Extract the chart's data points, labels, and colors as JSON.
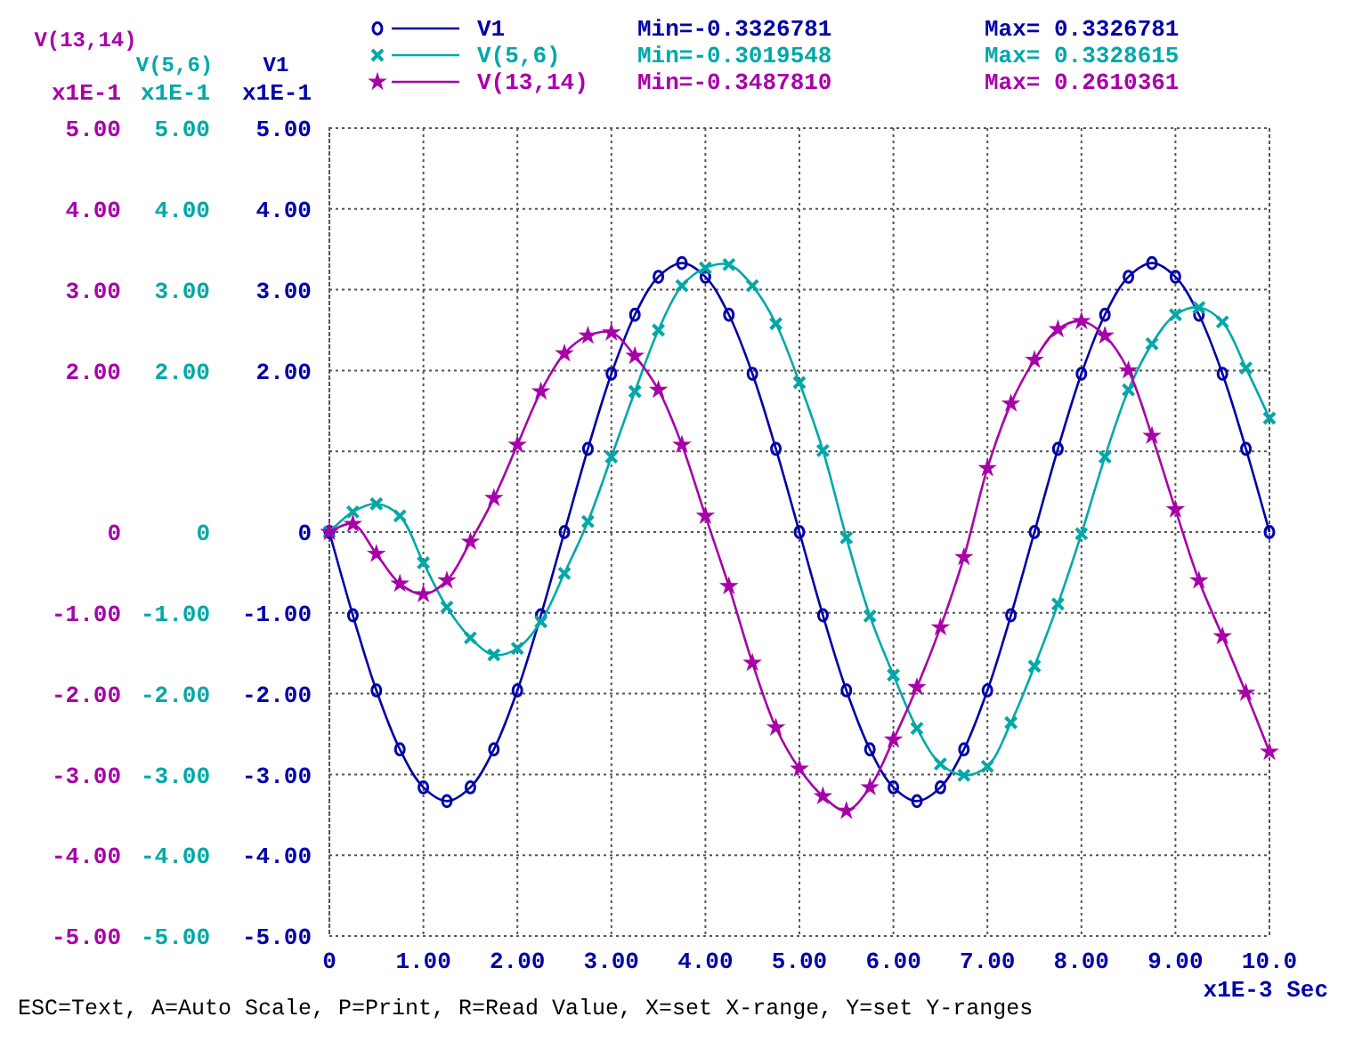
{
  "chart_data": {
    "type": "line",
    "xlabel": "x1E-3 Sec",
    "ylabel": "V(13,14)",
    "y2label": "V1",
    "y3label": "V(5,6)",
    "x": [
      0,
      0.25,
      0.5,
      0.75,
      1,
      1.25,
      1.5,
      1.75,
      2,
      2.25,
      2.5,
      2.75,
      3,
      3.25,
      3.5,
      3.75,
      4,
      4.25,
      4.5,
      4.75,
      5,
      5.25,
      5.5,
      5.75,
      6,
      6.25,
      6.5,
      6.75,
      7,
      7.25,
      7.5,
      7.75,
      8,
      8.25,
      8.5,
      8.75,
      9,
      9.25,
      9.5,
      9.75,
      10
    ],
    "series": [
      {
        "name": "V1",
        "color": "#0000a8",
        "axis": "y2",
        "marker": "circle",
        "values": [
          0,
          -1.03,
          -1.96,
          -2.69,
          -3.16,
          -3.33,
          -3.16,
          -2.69,
          -1.96,
          -1.03,
          0,
          1.03,
          1.96,
          2.69,
          3.16,
          3.33,
          3.16,
          2.69,
          1.96,
          1.03,
          0,
          -1.03,
          -1.96,
          -2.69,
          -3.16,
          -3.33,
          -3.16,
          -2.69,
          -1.96,
          -1.03,
          0,
          1.03,
          1.96,
          2.69,
          3.16,
          3.33,
          3.16,
          2.69,
          1.96,
          1.03,
          0
        ]
      },
      {
        "name": "V(5,6)",
        "color": "#00a8a8",
        "axis": "y3",
        "marker": "cross",
        "values": [
          0,
          0.25,
          0.35,
          0.2,
          -0.38,
          -0.93,
          -1.31,
          -1.52,
          -1.44,
          -1.11,
          -0.51,
          0.13,
          0.93,
          1.74,
          2.5,
          3.05,
          3.27,
          3.31,
          3.05,
          2.58,
          1.85,
          1.01,
          -0.07,
          -1.04,
          -1.77,
          -2.43,
          -2.87,
          -3.01,
          -2.9,
          -2.36,
          -1.66,
          -0.89,
          -0.02,
          0.93,
          1.76,
          2.33,
          2.69,
          2.78,
          2.6,
          2.03,
          1.41
        ]
      },
      {
        "name": "V(13,14)",
        "color": "#a800a8",
        "axis": "y",
        "marker": "star",
        "values": [
          0,
          0.1,
          -0.27,
          -0.64,
          -0.77,
          -0.6,
          -0.12,
          0.42,
          1.08,
          1.74,
          2.21,
          2.43,
          2.47,
          2.18,
          1.76,
          1.08,
          0.2,
          -0.67,
          -1.62,
          -2.42,
          -2.93,
          -3.27,
          -3.45,
          -3.16,
          -2.57,
          -1.92,
          -1.18,
          -0.31,
          0.79,
          1.59,
          2.13,
          2.51,
          2.61,
          2.43,
          2,
          1.19,
          0.28,
          -0.6,
          -1.29,
          -1.99,
          -2.72
        ]
      }
    ],
    "xlim": [
      0,
      10
    ],
    "xticks": [
      0,
      {
        "value": 1,
        "label": "1.00"
      },
      {
        "value": 2,
        "label": "2.00"
      },
      {
        "value": 3,
        "label": "3.00"
      },
      {
        "value": 4,
        "label": "4.00"
      },
      {
        "value": 5,
        "label": "5.00"
      },
      {
        "value": 6,
        "label": "6.00"
      },
      {
        "value": 7,
        "label": "7.00"
      },
      {
        "value": 8,
        "label": "8.00"
      },
      {
        "value": 9,
        "label": "9.00"
      },
      {
        "value": 10,
        "label": "10.0"
      }
    ],
    "ylim": [
      -5,
      5
    ],
    "yticks": [
      {
        "value": 5,
        "label": "5.00"
      },
      {
        "value": 4,
        "label": "4.00"
      },
      {
        "value": 3,
        "label": "3.00"
      },
      {
        "value": 2,
        "label": "2.00"
      },
      {
        "value": 1,
        "label": null
      },
      0,
      {
        "value": -1,
        "label": "-1.00"
      },
      {
        "value": -2,
        "label": "-2.00"
      },
      {
        "value": -3,
        "label": "-3.00"
      },
      {
        "value": -4,
        "label": "-4.00"
      },
      {
        "value": -5,
        "label": "-5.00"
      }
    ],
    "y3lim": [
      -5,
      5
    ],
    "y3ticks": [
      {
        "value": 5,
        "label": "5.00"
      },
      {
        "value": 4,
        "label": "4.00"
      },
      {
        "value": 3,
        "label": "3.00"
      },
      {
        "value": 2,
        "label": "2.00"
      },
      {
        "value": 1,
        "label": null
      },
      0,
      {
        "value": -1,
        "label": "-1.00"
      },
      {
        "value": -2,
        "label": "-2.00"
      },
      {
        "value": -3,
        "label": "-3.00"
      },
      {
        "value": -4,
        "label": "-4.00"
      },
      {
        "value": -5,
        "label": "-5.00"
      }
    ],
    "y2lim": [
      -5,
      5
    ],
    "y2ticks": [
      {
        "value": 5,
        "label": "5.00"
      },
      {
        "value": 4,
        "label": "4.00"
      },
      {
        "value": 3,
        "label": "3.00"
      },
      {
        "value": 2,
        "label": "2.00"
      },
      {
        "value": 1,
        "label": null
      },
      0,
      {
        "value": -1,
        "label": "-1.00"
      },
      {
        "value": -2,
        "label": "-2.00"
      },
      {
        "value": -3,
        "label": "-3.00"
      },
      {
        "value": -4,
        "label": "-4.00"
      },
      {
        "value": -5,
        "label": "-5.00"
      }
    ],
    "grid": true,
    "legend": "top",
    "line_style": "solid",
    "annotations": [
      "x1E-1",
      "x1E-1",
      "x1E-1",
      "Min=-0.3326781",
      "Max= 0.3326781",
      "Min=-0.3019548",
      "Max= 0.3328615",
      "Min=-0.3487810",
      "Max= 0.2610361",
      "ESC=Text, A=Auto Scale, P=Print, R=Read Value, X=set X-range, Y=set Y-ranges"
    ]
  }
}
